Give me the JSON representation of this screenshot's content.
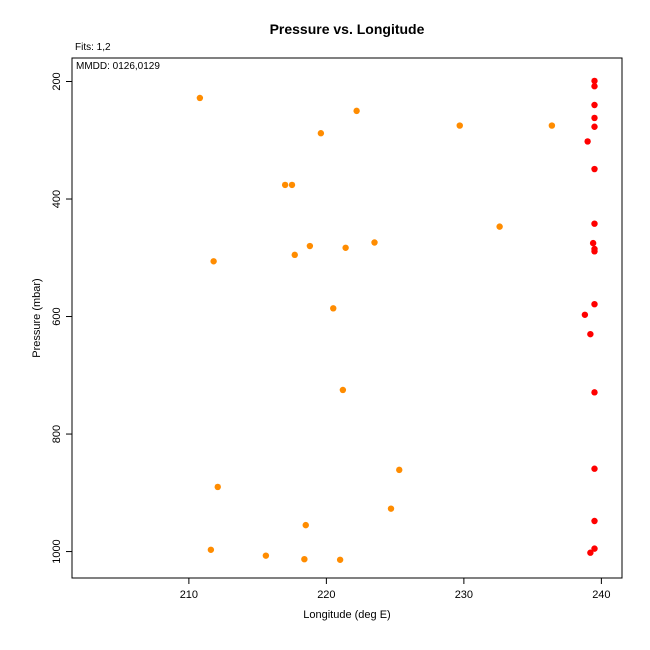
{
  "chart_data": {
    "type": "scatter",
    "title": "Pressure vs. Longitude",
    "fits_label": "Fits: 1,2",
    "mmdd_label": "MMDD: 0126,0129",
    "xlabel": "Longitude (deg E)",
    "ylabel": "Pressure (mbar)",
    "xlim": [
      201.5,
      241.5
    ],
    "ylim": [
      1045,
      160
    ],
    "y_inverted": true,
    "xticks": [
      210,
      220,
      230,
      240
    ],
    "yticks": [
      200,
      400,
      600,
      800,
      1000
    ],
    "grid": false,
    "series": [
      {
        "color": "#ff8c00",
        "points": [
          {
            "x": 210.8,
            "y": 228
          },
          {
            "x": 222.2,
            "y": 250
          },
          {
            "x": 229.7,
            "y": 275
          },
          {
            "x": 236.4,
            "y": 275
          },
          {
            "x": 219.6,
            "y": 288
          },
          {
            "x": 217.0,
            "y": 376
          },
          {
            "x": 217.5,
            "y": 376
          },
          {
            "x": 232.6,
            "y": 447
          },
          {
            "x": 223.5,
            "y": 474
          },
          {
            "x": 218.8,
            "y": 480
          },
          {
            "x": 221.4,
            "y": 483
          },
          {
            "x": 217.7,
            "y": 495
          },
          {
            "x": 211.8,
            "y": 506
          },
          {
            "x": 220.5,
            "y": 586
          },
          {
            "x": 221.2,
            "y": 725
          },
          {
            "x": 225.3,
            "y": 861
          },
          {
            "x": 212.1,
            "y": 890
          },
          {
            "x": 224.7,
            "y": 927
          },
          {
            "x": 218.5,
            "y": 955
          },
          {
            "x": 211.6,
            "y": 997
          },
          {
            "x": 215.6,
            "y": 1007
          },
          {
            "x": 218.4,
            "y": 1013
          },
          {
            "x": 221.0,
            "y": 1014
          }
        ]
      },
      {
        "color": "#ff0000",
        "points": [
          {
            "x": 239.5,
            "y": 199
          },
          {
            "x": 239.5,
            "y": 208
          },
          {
            "x": 239.5,
            "y": 240
          },
          {
            "x": 239.5,
            "y": 262
          },
          {
            "x": 239.5,
            "y": 277
          },
          {
            "x": 239.0,
            "y": 302
          },
          {
            "x": 239.5,
            "y": 349
          },
          {
            "x": 239.5,
            "y": 442
          },
          {
            "x": 239.4,
            "y": 475
          },
          {
            "x": 239.5,
            "y": 485
          },
          {
            "x": 239.5,
            "y": 489
          },
          {
            "x": 239.5,
            "y": 579
          },
          {
            "x": 238.8,
            "y": 597
          },
          {
            "x": 239.2,
            "y": 630
          },
          {
            "x": 239.5,
            "y": 729
          },
          {
            "x": 239.5,
            "y": 859
          },
          {
            "x": 239.5,
            "y": 948
          },
          {
            "x": 239.5,
            "y": 995
          },
          {
            "x": 239.2,
            "y": 1002
          }
        ]
      }
    ]
  }
}
